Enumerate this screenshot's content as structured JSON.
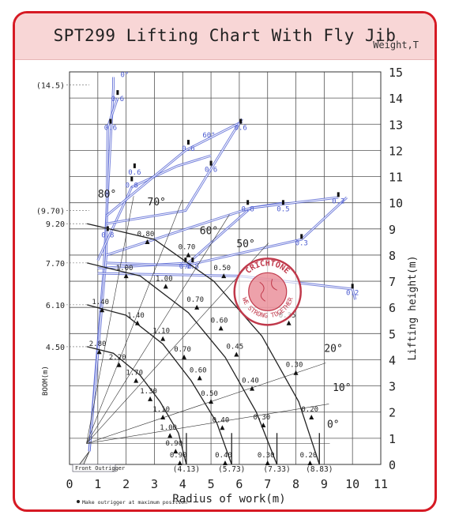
{
  "chart_data": {
    "type": "line",
    "title": "SPT299 Lifting Chart With Fly Jib",
    "unit_label": "Weight,T",
    "xlabel": "Radius of work(m)",
    "ylabel": "Lifting height(m)",
    "boom_label": "BOOM(m)",
    "xlim": [
      0,
      11
    ],
    "ylim": [
      0,
      15
    ],
    "x_ticks": [
      "0",
      "1",
      "2",
      "3",
      "4",
      "5",
      "6",
      "7",
      "8",
      "9",
      "10",
      "11"
    ],
    "y_ticks": [
      "0",
      "1",
      "2",
      "3",
      "4",
      "5",
      "6",
      "7",
      "8",
      "9",
      "10",
      "11",
      "12",
      "13",
      "14",
      "15"
    ],
    "grid": true,
    "boom_lengths": [
      {
        "label": "4.50",
        "height": 4.5
      },
      {
        "label": "6.10",
        "height": 6.1
      },
      {
        "label": "7.70",
        "height": 7.7
      },
      {
        "label": "(9.70)",
        "height": 9.7
      },
      {
        "label": "9.20",
        "height": 9.2
      },
      {
        "label": "(14.5)",
        "height": 14.5
      }
    ],
    "radius_marks": [
      {
        "label": "(4.13)",
        "x": 4.13
      },
      {
        "label": "(5.73)",
        "x": 5.73
      },
      {
        "label": "(7.33)",
        "x": 7.33
      },
      {
        "label": "(8.83)",
        "x": 8.83
      }
    ],
    "boom_angles": [
      "80°",
      "70°",
      "60°",
      "50°",
      "20°",
      "10°",
      "0°"
    ],
    "jib_angles": [
      "0°",
      "60°"
    ],
    "series": [
      {
        "name": "4.50",
        "x": [
          0.62,
          1.55,
          2.5,
          3.2,
          3.85,
          4.13
        ],
        "y": [
          4.5,
          4.25,
          3.4,
          2.4,
          1.2,
          0.0
        ]
      },
      {
        "name": "6.10",
        "x": [
          0.62,
          2.0,
          3.3,
          4.3,
          5.2,
          5.73
        ],
        "y": [
          6.1,
          5.7,
          4.6,
          3.2,
          1.6,
          0.0
        ]
      },
      {
        "name": "7.70",
        "x": [
          0.62,
          2.5,
          4.2,
          5.5,
          6.6,
          7.33
        ],
        "y": [
          7.7,
          7.2,
          5.8,
          4.1,
          2.0,
          0.0
        ]
      },
      {
        "name": "9.20",
        "x": [
          0.62,
          3.0,
          5.1,
          6.8,
          8.1,
          8.83
        ],
        "y": [
          9.2,
          8.6,
          7.0,
          4.9,
          2.4,
          0.0
        ]
      }
    ],
    "load_labels": [
      {
        "text": "2.80",
        "x": 1.05,
        "y": 4.4
      },
      {
        "text": "2.20",
        "x": 1.75,
        "y": 3.9
      },
      {
        "text": "1.70",
        "x": 2.35,
        "y": 3.3
      },
      {
        "text": "1.30",
        "x": 2.85,
        "y": 2.6
      },
      {
        "text": "1.10",
        "x": 3.3,
        "y": 1.9
      },
      {
        "text": "1.00",
        "x": 3.55,
        "y": 1.2
      },
      {
        "text": "0.90",
        "x": 3.75,
        "y": 0.6
      },
      {
        "text": "0.90",
        "x": 3.9,
        "y": 0.15
      },
      {
        "text": "1.40",
        "x": 1.15,
        "y": 6.0
      },
      {
        "text": "1.40",
        "x": 2.4,
        "y": 5.5
      },
      {
        "text": "1.10",
        "x": 3.3,
        "y": 4.9
      },
      {
        "text": "0.70",
        "x": 4.05,
        "y": 4.2
      },
      {
        "text": "0.60",
        "x": 4.6,
        "y": 3.4
      },
      {
        "text": "0.50",
        "x": 5.0,
        "y": 2.5
      },
      {
        "text": "0.40",
        "x": 5.4,
        "y": 1.5
      },
      {
        "text": "0.40",
        "x": 5.5,
        "y": 0.15
      },
      {
        "text": "1.00",
        "x": 2.0,
        "y": 7.3
      },
      {
        "text": "1.00",
        "x": 3.4,
        "y": 6.9
      },
      {
        "text": "0.70",
        "x": 4.5,
        "y": 6.1
      },
      {
        "text": "0.60",
        "x": 5.35,
        "y": 5.3
      },
      {
        "text": "0.45",
        "x": 5.9,
        "y": 4.3
      },
      {
        "text": "0.40",
        "x": 6.45,
        "y": 3.0
      },
      {
        "text": "0.30",
        "x": 6.85,
        "y": 1.6
      },
      {
        "text": "0.30",
        "x": 7.0,
        "y": 0.15
      },
      {
        "text": "0.80",
        "x": 2.75,
        "y": 8.6
      },
      {
        "text": "0.70",
        "x": 4.2,
        "y": 8.1
      },
      {
        "text": "0.50",
        "x": 5.45,
        "y": 7.3
      },
      {
        "text": "0.35",
        "x": 7.75,
        "y": 5.5
      },
      {
        "text": "0.30",
        "x": 8.0,
        "y": 3.6
      },
      {
        "text": "0.20",
        "x": 8.55,
        "y": 1.9
      },
      {
        "text": "0.20",
        "x": 8.5,
        "y": 0.15
      }
    ],
    "jib_loads": [
      {
        "text": "0.6",
        "x": 1.7,
        "y": 14.0
      },
      {
        "text": "0.6",
        "x": 1.45,
        "y": 12.9
      },
      {
        "text": "0.6",
        "x": 4.2,
        "y": 12.1
      },
      {
        "text": "0.6",
        "x": 6.05,
        "y": 12.9
      },
      {
        "text": "0.6",
        "x": 5.0,
        "y": 11.3
      },
      {
        "text": "0.6",
        "x": 2.3,
        "y": 11.2
      },
      {
        "text": "0.8",
        "x": 2.2,
        "y": 10.7
      },
      {
        "text": "0.8",
        "x": 1.35,
        "y": 8.8
      },
      {
        "text": "0.8",
        "x": 4.1,
        "y": 7.6
      },
      {
        "text": "0.8",
        "x": 4.35,
        "y": 7.6
      },
      {
        "text": "0.8",
        "x": 6.3,
        "y": 9.8
      },
      {
        "text": "0.5",
        "x": 7.55,
        "y": 9.8
      },
      {
        "text": "0.2",
        "x": 9.5,
        "y": 10.1
      },
      {
        "text": "0.3",
        "x": 8.2,
        "y": 8.5
      },
      {
        "text": "0.2",
        "x": 10.0,
        "y": 6.6
      }
    ],
    "footnote_outrigger": "Front Outrigger",
    "footnote": "Make outrigger at maximum position"
  },
  "colors": {
    "border": "#d61a24",
    "title_bg": "#f8d6d6",
    "grid": "#555555",
    "curves": "#222222",
    "boom": "#4a5ad0",
    "jib": "#4a5ad0",
    "watermark": "#c0394b"
  },
  "watermark": {
    "top_text": "CRICHTONE",
    "bottom_text": "WE STRONG TOGETHER"
  }
}
